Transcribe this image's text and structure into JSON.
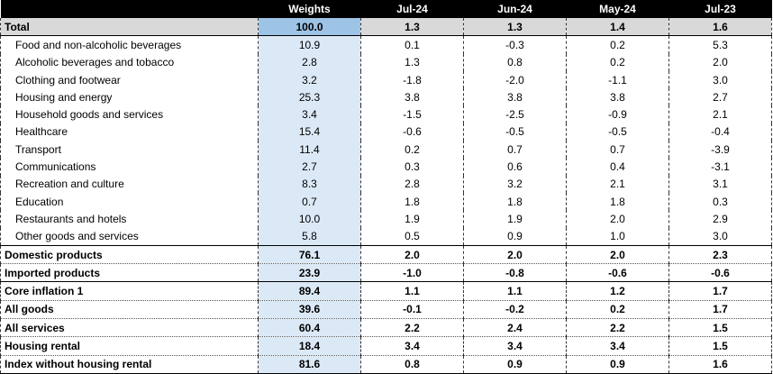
{
  "header": {
    "label": "",
    "weights": "Weights",
    "col1": "Jul-24",
    "col2": "Jun-24",
    "col3": "May-24",
    "col4": "Jul-23"
  },
  "rows": [
    {
      "label": "Total",
      "weights": "100.0",
      "v1": "1.3",
      "v2": "1.3",
      "v3": "1.4",
      "v4": "1.6"
    },
    {
      "label": "Food and non-alcoholic beverages",
      "weights": "10.9",
      "v1": "0.1",
      "v2": "-0.3",
      "v3": "0.2",
      "v4": "5.3"
    },
    {
      "label": "Alcoholic beverages and tobacco",
      "weights": "2.8",
      "v1": "1.3",
      "v2": "0.8",
      "v3": "0.2",
      "v4": "2.0"
    },
    {
      "label": "Clothing and footwear",
      "weights": "3.2",
      "v1": "-1.8",
      "v2": "-2.0",
      "v3": "-1.1",
      "v4": "3.0"
    },
    {
      "label": "Housing and energy",
      "weights": "25.3",
      "v1": "3.8",
      "v2": "3.8",
      "v3": "3.8",
      "v4": "2.7"
    },
    {
      "label": "Household goods and services",
      "weights": "3.4",
      "v1": "-1.5",
      "v2": "-2.5",
      "v3": "-0.9",
      "v4": "2.1"
    },
    {
      "label": "Healthcare",
      "weights": "15.4",
      "v1": "-0.6",
      "v2": "-0.5",
      "v3": "-0.5",
      "v4": "-0.4"
    },
    {
      "label": "Transport",
      "weights": "11.4",
      "v1": "0.2",
      "v2": "0.7",
      "v3": "0.7",
      "v4": "-3.9"
    },
    {
      "label": "Communications",
      "weights": "2.7",
      "v1": "0.3",
      "v2": "0.6",
      "v3": "0.4",
      "v4": "-3.1"
    },
    {
      "label": "Recreation and culture",
      "weights": "8.3",
      "v1": "2.8",
      "v2": "3.2",
      "v3": "2.1",
      "v4": "3.1"
    },
    {
      "label": "Education",
      "weights": "0.7",
      "v1": "1.8",
      "v2": "1.8",
      "v3": "1.8",
      "v4": "0.3"
    },
    {
      "label": "Restaurants and hotels",
      "weights": "10.0",
      "v1": "1.9",
      "v2": "1.9",
      "v3": "2.0",
      "v4": "2.9"
    },
    {
      "label": "Other goods and services",
      "weights": "5.8",
      "v1": "0.5",
      "v2": "0.9",
      "v3": "1.0",
      "v4": "3.0"
    },
    {
      "label": "Domestic products",
      "weights": "76.1",
      "v1": "2.0",
      "v2": "2.0",
      "v3": "2.0",
      "v4": "2.3"
    },
    {
      "label": "Imported products",
      "weights": "23.9",
      "v1": "-1.0",
      "v2": "-0.8",
      "v3": "-0.6",
      "v4": "-0.6"
    },
    {
      "label": "Core inflation 1",
      "weights": "89.4",
      "v1": "1.1",
      "v2": "1.1",
      "v3": "1.2",
      "v4": "1.7"
    },
    {
      "label": "All goods",
      "weights": "39.6",
      "v1": "-0.1",
      "v2": "-0.2",
      "v3": "0.2",
      "v4": "1.7"
    },
    {
      "label": "All services",
      "weights": "60.4",
      "v1": "2.2",
      "v2": "2.4",
      "v3": "2.2",
      "v4": "1.5"
    },
    {
      "label": "Housing rental",
      "weights": "18.4",
      "v1": "3.4",
      "v2": "3.4",
      "v3": "3.4",
      "v4": "1.5"
    },
    {
      "label": "Index without housing rental",
      "weights": "81.6",
      "v1": "0.8",
      "v2": "0.9",
      "v3": "0.9",
      "v4": "1.6"
    }
  ],
  "colors": {
    "header_bg": "#000000",
    "weights_col_bg": "#dbe9f7",
    "total_weight_bg": "#9dc3e6",
    "total_row_bg": "#d9d9d9"
  }
}
